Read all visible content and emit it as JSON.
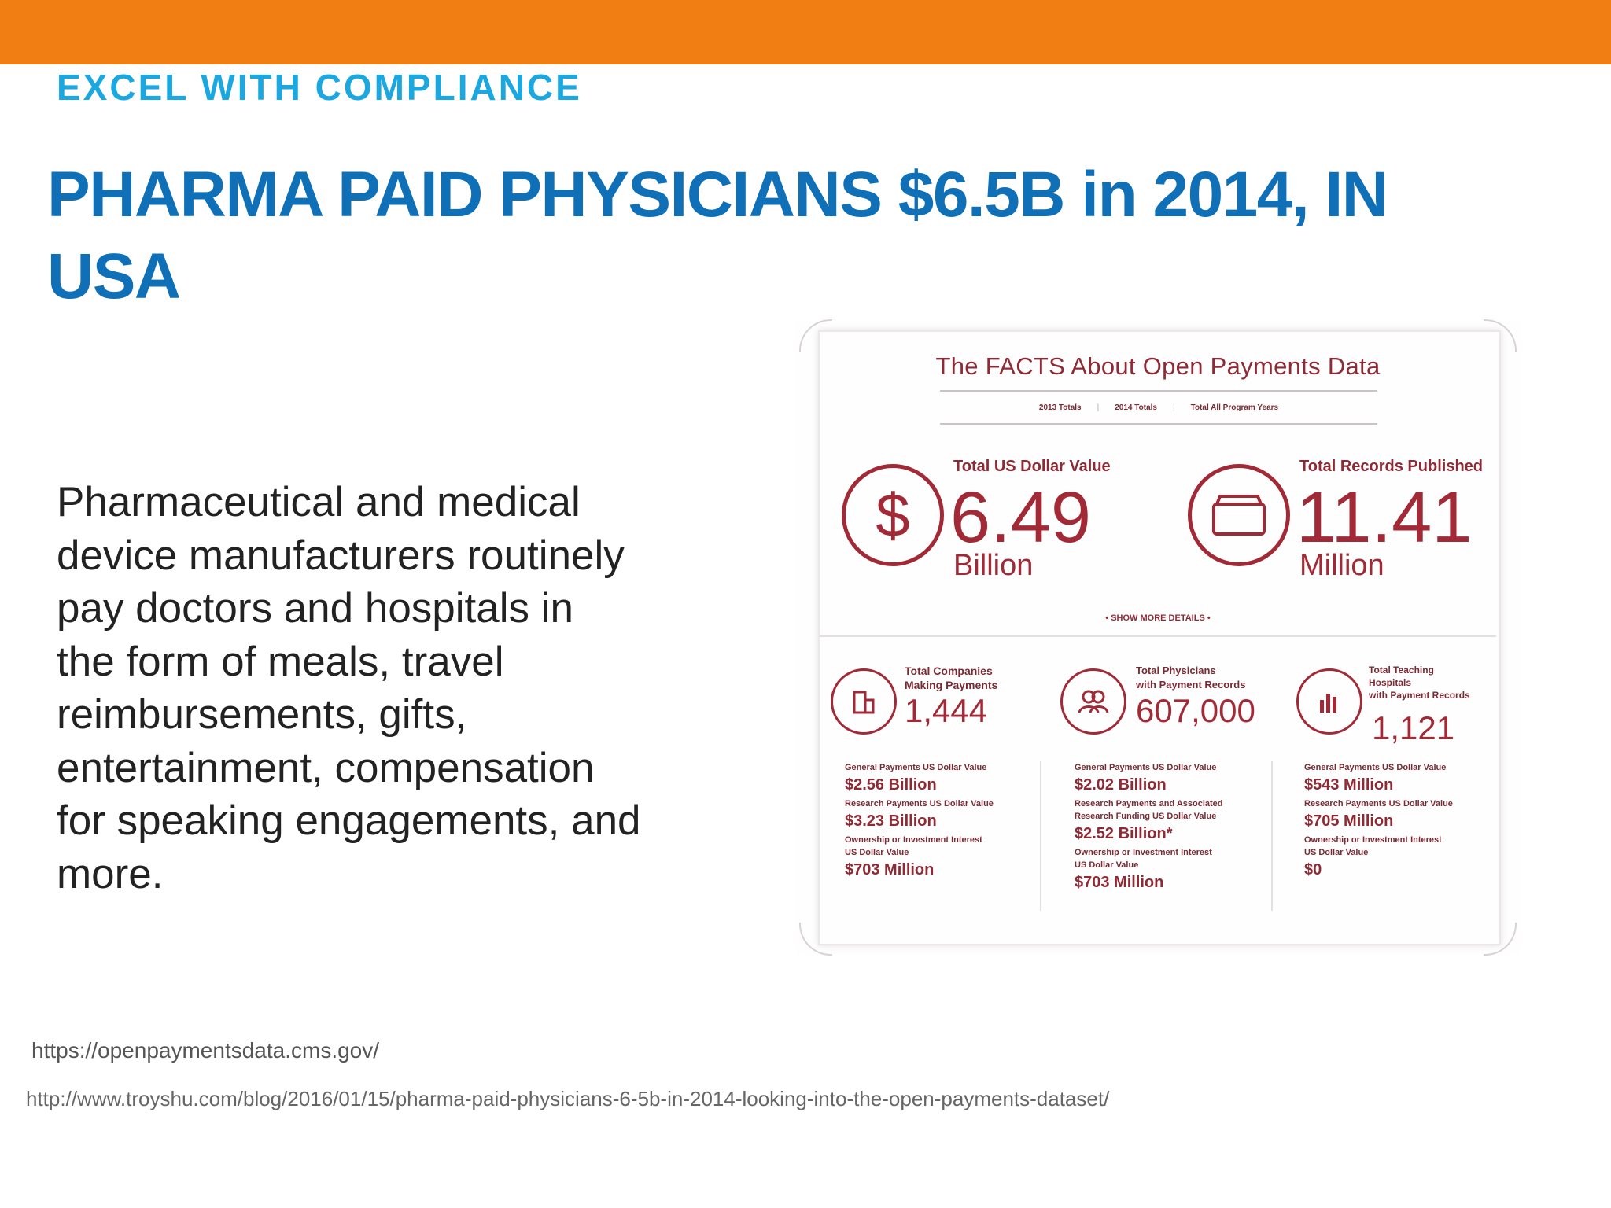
{
  "header": {
    "kicker": "EXCEL WITH COMPLIANCE",
    "title": "PHARMA PAID PHYSICIANS $6.5B in 2014, IN USA"
  },
  "body": {
    "text": "Pharmaceutical  and medical\ndevice manufacturers routinely\npay doctors and hospitals in\nthe form of meals, travel\nreimbursements, gifts,\nentertainment, compensation\nfor speaking engagements, and\nmore."
  },
  "sources": {
    "link1": "https://openpaymentsdata.cms.gov/",
    "link2": "http://www.troyshu.com/blog/2016/01/15/pharma-paid-physicians-6-5b-in-2014-looking-into-the-open-payments-dataset/"
  },
  "infographic": {
    "title": "The FACTS About Open Payments Data",
    "tabs": [
      "2013 Totals",
      "2014 Totals",
      "Total All Program Years"
    ],
    "total_value": {
      "label": "Total US Dollar Value",
      "value": "6.49",
      "unit": "Billion"
    },
    "total_records": {
      "label": "Total Records Published",
      "value": "11.41",
      "unit": "Million"
    },
    "show_more": "• SHOW MORE DETAILS •",
    "companies": {
      "label": "Total Companies\nMaking Payments",
      "value": "1,444",
      "k1": "General Payments US Dollar Value",
      "v1": "$2.56 Billion",
      "k2": "Research Payments US Dollar Value",
      "v2": "$3.23 Billion",
      "k3": "Ownership or Investment Interest\nUS Dollar Value",
      "v3": "$703 Million"
    },
    "physicians": {
      "label": "Total Physicians\nwith Payment Records",
      "value": "607,000",
      "k1": "General Payments US Dollar Value",
      "v1": "$2.02 Billion",
      "k2": "Research Payments and Associated\nResearch Funding US Dollar Value",
      "v2": "$2.52 Billion*",
      "k3": "Ownership or Investment Interest\nUS Dollar Value",
      "v3": "$703 Million"
    },
    "hospitals": {
      "label": "Total Teaching\nHospitals\nwith Payment Records",
      "value": "1,121",
      "k1": "General Payments US Dollar Value",
      "v1": "$543 Million",
      "k2": "Research Payments US Dollar Value",
      "v2": "$705 Million",
      "k3": "Ownership or Investment Interest\nUS Dollar Value",
      "v3": "$0"
    },
    "colors": {
      "accent": "#a12a36",
      "topbar": "#f07e12",
      "kicker": "#1ba7e0",
      "title": "#0f6fb7"
    }
  }
}
